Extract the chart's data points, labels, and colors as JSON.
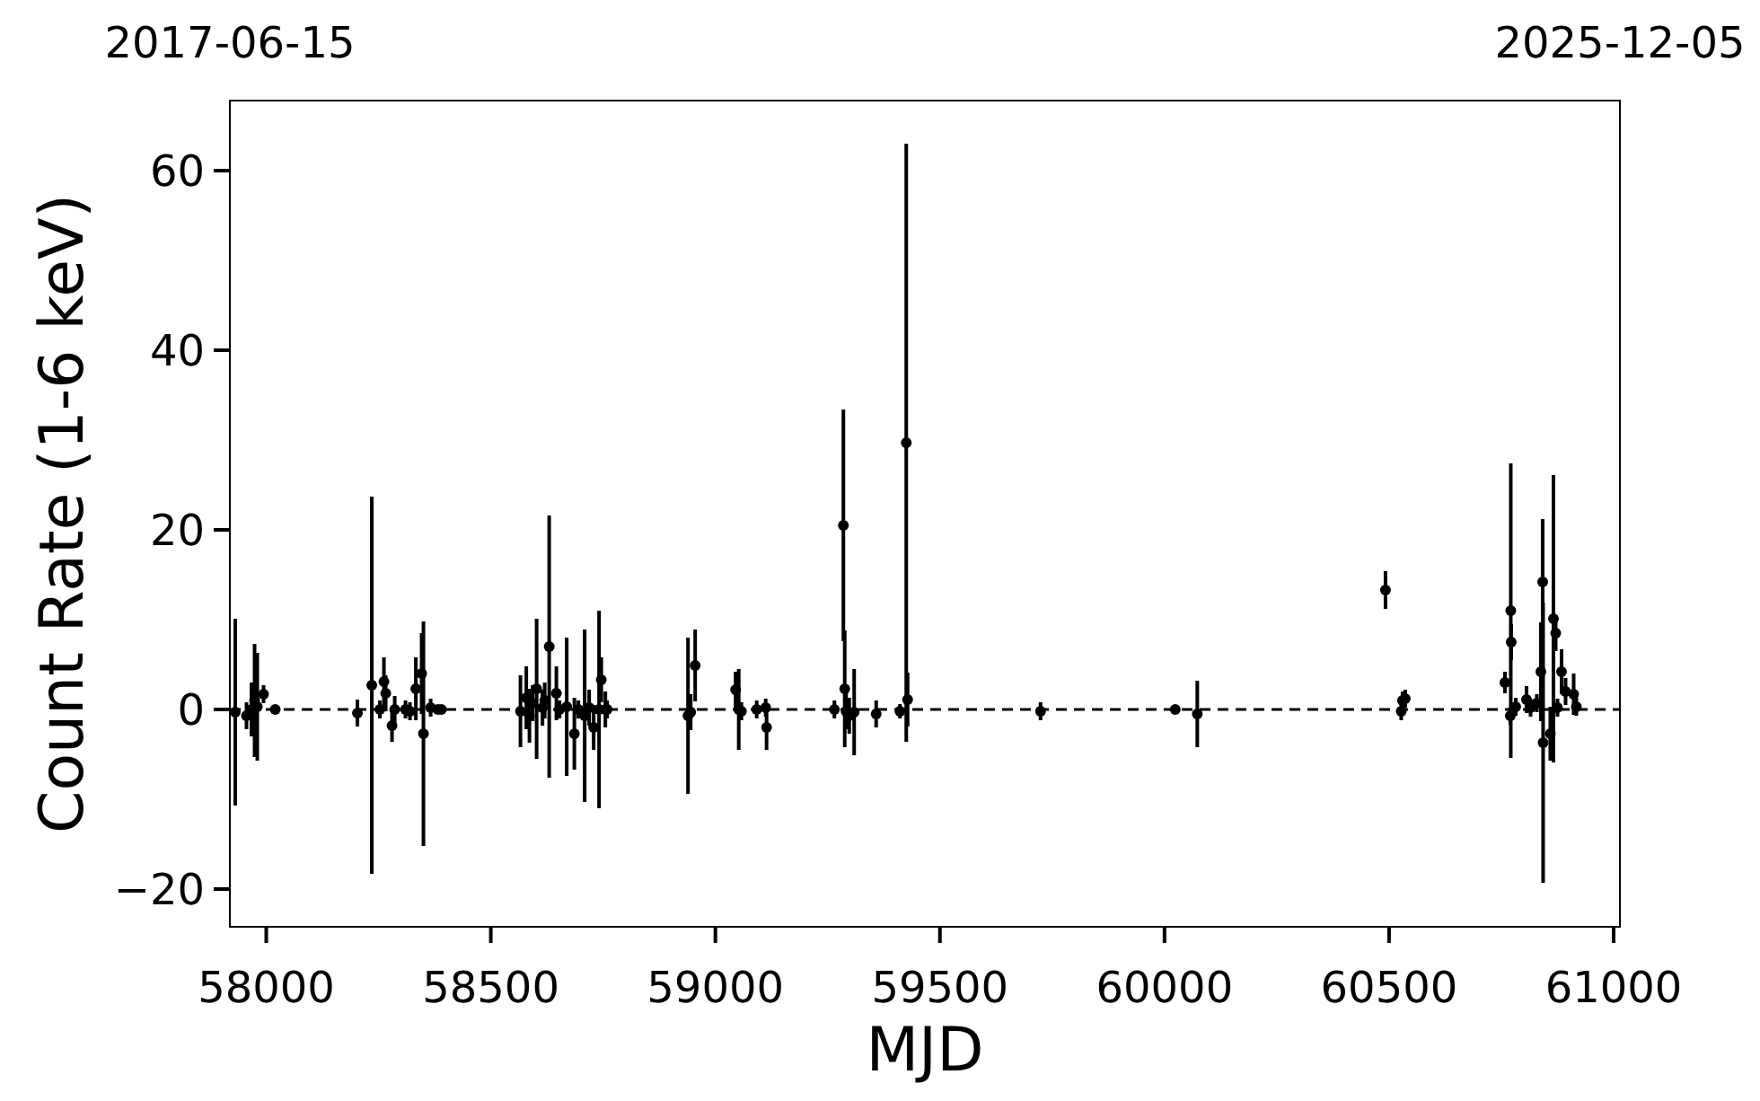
{
  "chart_data": {
    "type": "scatter",
    "xlabel": "MJD",
    "ylabel": "Count Rate (1-6 keV)",
    "xlim": [
      57919,
      61014
    ],
    "xticks": [
      58000,
      58500,
      59000,
      59500,
      60000,
      60500,
      61000
    ],
    "ylim": [
      -24.2,
      67.8
    ],
    "yticks": [
      -20,
      0,
      20,
      40,
      60
    ],
    "annotations": [
      "2017-06-15",
      "2025-12-05"
    ],
    "marker": "circle",
    "grid": false,
    "ref_lines": [
      {
        "axis": "y",
        "value": 0,
        "color": "#000000",
        "line_style": "dashed"
      }
    ],
    "series": [
      {
        "color": "#000000",
        "x": [
          57931,
          57956,
          57967,
          57974,
          57980,
          57994,
          58020,
          58203,
          58235,
          58253,
          58262,
          58266,
          58280,
          58286,
          58310,
          58320,
          58333,
          58346,
          58350,
          58366,
          58382,
          58390,
          58566,
          58579,
          58586,
          58593,
          58602,
          58615,
          58620,
          58630,
          58646,
          58653,
          58669,
          58686,
          58695,
          58709,
          58719,
          58729,
          58741,
          58746,
          58755,
          58759,
          58939,
          58945,
          58955,
          59045,
          59052,
          59058,
          59092,
          59112,
          59114,
          59265,
          59285,
          59288,
          59291,
          59298,
          59309,
          59358,
          59411,
          59425,
          59428,
          59724,
          60024,
          60073,
          60492,
          60527,
          60530,
          60536,
          60758,
          60771,
          60772,
          60770,
          60782,
          60806,
          60815,
          60829,
          60838,
          60842,
          60843,
          60859,
          60866,
          60871,
          60875,
          60884,
          60893,
          60911,
          60917
        ],
        "values": [
          -0.3,
          -0.7,
          0,
          1,
          0.3,
          1.7,
          0,
          -0.4,
          2.7,
          0,
          3.1,
          1.8,
          -1.8,
          0,
          0,
          -0.2,
          2.3,
          4,
          -2.7,
          0.2,
          0,
          0,
          -0.2,
          1.3,
          -0.7,
          0.7,
          2.3,
          0.2,
          1,
          7,
          1.8,
          0,
          0.3,
          -2.7,
          0,
          -0.7,
          0.2,
          -2,
          0,
          3.3,
          0,
          0,
          -0.7,
          -0.3,
          4.9,
          2.2,
          0,
          -0.2,
          0,
          0.2,
          -2,
          0,
          20.5,
          2.3,
          -0.2,
          -0.7,
          -0.3,
          -0.5,
          -0.2,
          29.7,
          1.1,
          -0.2,
          0,
          -0.5,
          13.3,
          -0.2,
          1,
          1.2,
          3,
          11,
          7.5,
          -0.7,
          0.3,
          1.1,
          0.2,
          0.7,
          4.2,
          14.2,
          -3.7,
          -2.7,
          10.1,
          8.5,
          0.2,
          4.2,
          2,
          1.7,
          0.3
        ],
        "errors": [
          10.4,
          1.5,
          3,
          6.3,
          6,
          1,
          0.3,
          1.5,
          21,
          1,
          2.7,
          2,
          1.8,
          1.5,
          1,
          1,
          3.5,
          4.5,
          12.5,
          1,
          0.5,
          0.3,
          4,
          3.5,
          3,
          2,
          7.8,
          2,
          2,
          14.6,
          3,
          1,
          7.7,
          4,
          1,
          9.6,
          2,
          2.5,
          11,
          2.5,
          2,
          1,
          8.7,
          2,
          4,
          2,
          4.5,
          1,
          1,
          1,
          2.5,
          1,
          12.9,
          6.5,
          2,
          2,
          4.8,
          1.5,
          0.8,
          33.3,
          3,
          1,
          0.3,
          3.7,
          2.1,
          1,
          1,
          1,
          1.2,
          16.4,
          2,
          1,
          1,
          1.5,
          1,
          1,
          5.5,
          7,
          15.6,
          3,
          16,
          2,
          1,
          2.5,
          1.5,
          2.3,
          1
        ]
      }
    ]
  }
}
